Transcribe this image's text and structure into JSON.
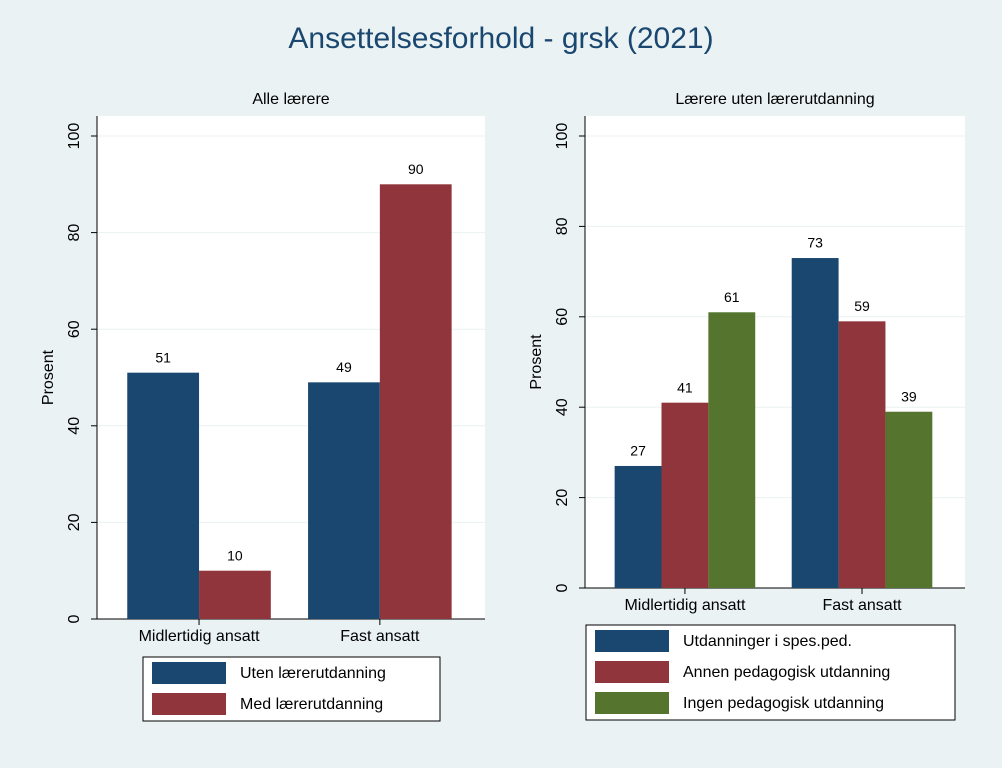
{
  "title": "Ansettelsesforhold - grsk (2021)",
  "chart_data": [
    {
      "type": "bar",
      "title": "Alle lærere",
      "ylabel": "Prosent",
      "categories": [
        "Midlertidig ansatt",
        "Fast ansatt"
      ],
      "series": [
        {
          "name": "Uten lærerutdanning",
          "color": "#1a476f",
          "values": [
            51,
            49
          ]
        },
        {
          "name": "Med lærerutdanning",
          "color": "#90353b",
          "values": [
            10,
            90
          ]
        }
      ],
      "ylim": [
        0,
        100
      ],
      "yticks": [
        0,
        20,
        40,
        60,
        80,
        100
      ],
      "grid": true,
      "legend": "bottom"
    },
    {
      "type": "bar",
      "title": "Lærere uten lærerutdanning",
      "ylabel": "Prosent",
      "categories": [
        "Midlertidig ansatt",
        "Fast ansatt"
      ],
      "series": [
        {
          "name": "Utdanninger i spes.ped.",
          "color": "#1a476f",
          "values": [
            27,
            73
          ]
        },
        {
          "name": "Annen pedagogisk utdanning",
          "color": "#90353b",
          "values": [
            41,
            59
          ]
        },
        {
          "name": "Ingen pedagogisk utdanning",
          "color": "#55752f",
          "values": [
            61,
            39
          ]
        }
      ],
      "ylim": [
        0,
        100
      ],
      "yticks": [
        0,
        20,
        40,
        60,
        80,
        100
      ],
      "grid": true,
      "legend": "bottom"
    }
  ]
}
